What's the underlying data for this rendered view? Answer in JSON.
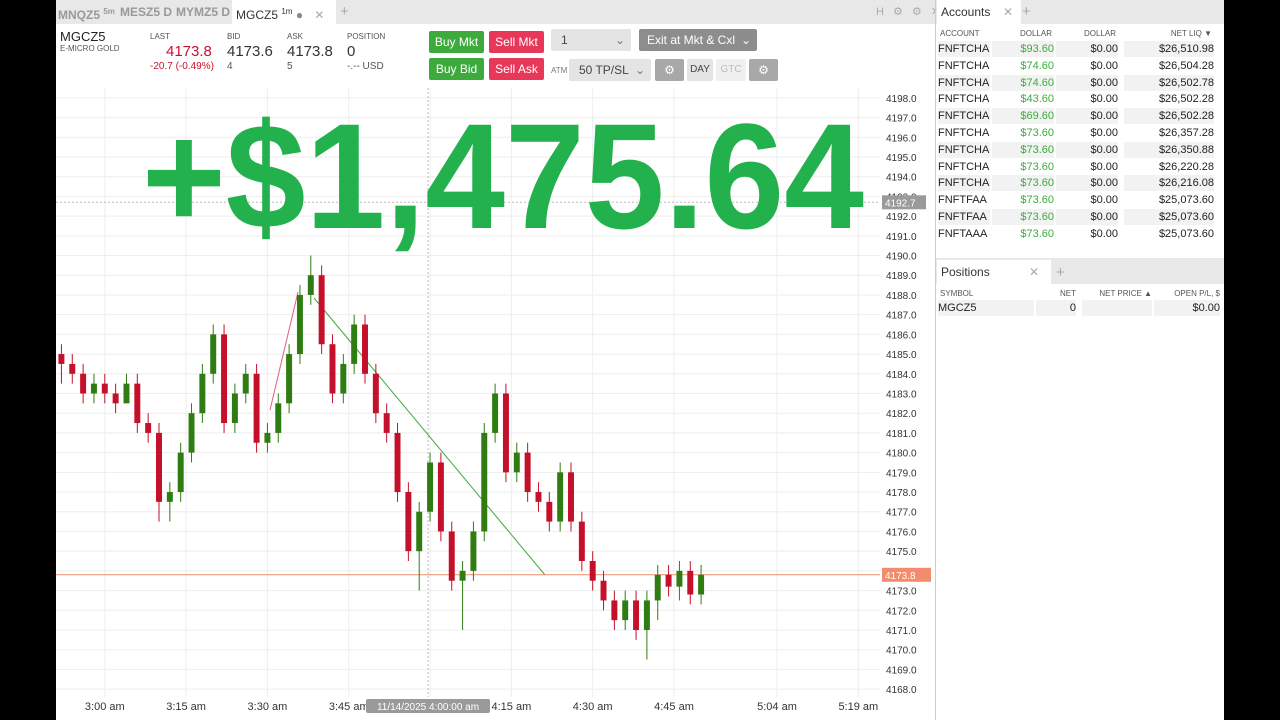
{
  "tabs": [
    {
      "symbol": "MNQZ5",
      "period": "5m"
    },
    {
      "symbol": "MESZ5",
      "period": "D"
    },
    {
      "symbol": "MYMZ5",
      "period": "D"
    },
    {
      "symbol": "MGCZ5",
      "period": "1m"
    }
  ],
  "quote": {
    "symbol": "MGCZ5",
    "description": "E-MICRO GOLD",
    "last_label": "LAST",
    "last": "4173.8",
    "change": "-20.7 (-0.49%)",
    "bid_label": "BID",
    "bid": "4173.6",
    "bid_size": "4",
    "ask_label": "ASK",
    "ask": "4173.8",
    "ask_size": "5",
    "position_label": "POSITION",
    "position": "0",
    "position_value": "-.-- USD"
  },
  "order_panel": {
    "buy_mkt": "Buy Mkt",
    "sell_mkt": "Sell Mkt",
    "buy_bid": "Buy Bid",
    "sell_ask": "Sell Ask",
    "quantity": "1",
    "exit": "Exit at Mkt & Cxl",
    "atm_label": "ATM",
    "atm": "50 TP/SL",
    "tif_day": "DAY",
    "tif_gtc": "GTC"
  },
  "overlay_text": "+$1,475.64",
  "chart_data": {
    "type": "candlestick",
    "up_color": "#2f7d12",
    "down_color": "#c4102a",
    "grid": true,
    "x": [
      "2:52 am",
      "2:54 am",
      "2:56 am",
      "2:58 am",
      "3:00 am",
      "3:02 am",
      "3:04 am",
      "3:06 am",
      "3:08 am",
      "3:10 am",
      "3:12 am",
      "3:14 am",
      "3:16 am",
      "3:18 am",
      "3:20 am",
      "3:22 am",
      "3:24 am",
      "3:26 am",
      "3:28 am",
      "3:30 am",
      "3:32 am",
      "3:34 am",
      "3:36 am",
      "3:38 am",
      "3:40 am",
      "3:42 am",
      "3:44 am",
      "3:46 am",
      "3:48 am",
      "3:50 am",
      "3:52 am",
      "3:54 am",
      "3:56 am",
      "3:58 am",
      "4:00 am",
      "4:02 am",
      "4:04 am",
      "4:06 am",
      "4:08 am",
      "4:10 am",
      "4:12 am",
      "4:14 am",
      "4:16 am",
      "4:18 am",
      "4:20 am",
      "4:22 am",
      "4:24 am",
      "4:26 am",
      "4:28 am",
      "4:30 am",
      "4:32 am",
      "4:34 am",
      "4:36 am",
      "4:38 am",
      "4:40 am",
      "4:42 am",
      "4:44 am",
      "4:46 am",
      "4:48 am",
      "4:50 am"
    ],
    "open": [
      4185,
      4184.5,
      4184,
      4183,
      4183.5,
      4183,
      4182.5,
      4183.5,
      4181.5,
      4181,
      4177.5,
      4178,
      4180,
      4182,
      4184,
      4186,
      4181.5,
      4183,
      4184,
      4180.5,
      4181,
      4182.5,
      4185,
      4188,
      4189,
      4185.5,
      4183,
      4184.5,
      4186.5,
      4184,
      4182,
      4181,
      4178,
      4175,
      4177,
      4179.5,
      4176,
      4173.5,
      4174,
      4176,
      4181,
      4183,
      4179,
      4180,
      4178,
      4177.5,
      4176.5,
      4179,
      4176.5,
      4174.5,
      4173.5,
      4172.5,
      4171.5,
      4172.5,
      4171,
      4172.5,
      4173.8,
      4173.2,
      4174,
      4172.8
    ],
    "high": [
      4185.5,
      4185,
      4184.5,
      4184,
      4184,
      4183.5,
      4184,
      4184,
      4182,
      4181.5,
      4178.5,
      4180.5,
      4182.5,
      4184.5,
      4186.5,
      4186.5,
      4183.5,
      4184.5,
      4184.5,
      4181.5,
      4183,
      4185.5,
      4188.5,
      4190,
      4189.5,
      4186,
      4185,
      4187,
      4187,
      4184.5,
      4182.5,
      4181.5,
      4178.5,
      4177.5,
      4180,
      4180,
      4176.5,
      4174.5,
      4176.5,
      4181.5,
      4183.5,
      4183.5,
      4180.5,
      4180.5,
      4178.5,
      4178,
      4179.5,
      4179.5,
      4177,
      4175,
      4174,
      4173,
      4173,
      4173,
      4173,
      4174.3,
      4174.3,
      4174.5,
      4174.5,
      4174.3
    ],
    "low": [
      4183.5,
      4183.5,
      4182.5,
      4182.5,
      4182.5,
      4182,
      4182.5,
      4181,
      4180.5,
      4176.5,
      4176.5,
      4177.5,
      4179.5,
      4181.5,
      4183.5,
      4181,
      4181,
      4182.5,
      4180,
      4180,
      4180.5,
      4182,
      4184.5,
      4187.5,
      4185,
      4182.5,
      4182.5,
      4184,
      4183.5,
      4181.5,
      4180.5,
      4177.5,
      4174.5,
      4173,
      4176.5,
      4175.5,
      4173,
      4171,
      4173.5,
      4175.5,
      4180.5,
      4178.5,
      4178.5,
      4177.5,
      4177,
      4176,
      4176,
      4176,
      4174,
      4173,
      4172,
      4171,
      4171,
      4170.5,
      4169.5,
      4171.5,
      4172.7,
      4172.5,
      4172.3,
      4172.3
    ],
    "close": [
      4184.5,
      4184,
      4183,
      4183.5,
      4183,
      4182.5,
      4183.5,
      4181.5,
      4181,
      4177.5,
      4178,
      4180,
      4182,
      4184,
      4186,
      4181.5,
      4183,
      4184,
      4180.5,
      4181,
      4182.5,
      4185,
      4188,
      4189,
      4185.5,
      4183,
      4184.5,
      4186.5,
      4184,
      4182,
      4181,
      4178,
      4175,
      4177,
      4179.5,
      4176,
      4173.5,
      4174,
      4176,
      4181,
      4183,
      4179,
      4180,
      4178,
      4177.5,
      4176.5,
      4179,
      4176.5,
      4174.5,
      4173.5,
      4172.5,
      4171.5,
      4172.5,
      4171,
      4172.5,
      4173.8,
      4173.2,
      4174,
      4172.8,
      4173.8
    ],
    "xlim": [
      "2:51 am",
      "5:23 am"
    ],
    "xticks": [
      "3:00 am",
      "3:15 am",
      "3:30 am",
      "3:45 am",
      "4:00 am",
      "4:15 am",
      "4:30 am",
      "4:45 am",
      "5:04 am",
      "5:19 am"
    ],
    "ylim": [
      4167.6,
      4198.5
    ],
    "yticks": [
      {
        "value": 4168,
        "label": "4168.0"
      },
      {
        "value": 4169,
        "label": "4169.0"
      },
      {
        "value": 4170,
        "label": "4170.0"
      },
      {
        "value": 4171,
        "label": "4171.0"
      },
      {
        "value": 4172,
        "label": "4172.0"
      },
      {
        "value": 4173,
        "label": "4173.0"
      },
      {
        "value": 4174,
        "label": "4174.0"
      },
      {
        "value": 4175,
        "label": "4175.0"
      },
      {
        "value": 4176,
        "label": "4176.0"
      },
      {
        "value": 4177,
        "label": "4177.0"
      },
      {
        "value": 4178,
        "label": "4178.0"
      },
      {
        "value": 4179,
        "label": "4179.0"
      },
      {
        "value": 4180,
        "label": "4180.0"
      },
      {
        "value": 4181,
        "label": "4181.0"
      },
      {
        "value": 4182,
        "label": "4182.0"
      },
      {
        "value": 4183,
        "label": "4183.0"
      },
      {
        "value": 4184,
        "label": "4184.0"
      },
      {
        "value": 4185,
        "label": "4185.0"
      },
      {
        "value": 4186,
        "label": "4186.0"
      },
      {
        "value": 4187,
        "label": "4187.0"
      },
      {
        "value": 4188,
        "label": "4188.0"
      },
      {
        "value": 4189,
        "label": "4189.0"
      },
      {
        "value": 4190,
        "label": "4190.0"
      },
      {
        "value": 4191,
        "label": "4191.0"
      },
      {
        "value": 4192,
        "label": "4192.0"
      },
      {
        "value": 4193,
        "label": "4193.0"
      },
      {
        "value": 4194,
        "label": "4194.0"
      },
      {
        "value": 4195,
        "label": "4195.0"
      },
      {
        "value": 4196,
        "label": "4196.0"
      },
      {
        "value": 4197,
        "label": "4197.0"
      },
      {
        "value": 4198,
        "label": "4198.0"
      }
    ],
    "last_price": 4173.8,
    "last_price_color": "#f28c6c",
    "crosshair_price": 4192.7,
    "crosshair_label": "11/14/2025 4:00:00 am"
  },
  "accounts": {
    "title": "Accounts",
    "columns": [
      "ACCOUNT",
      "DOLLAR",
      "DOLLAR",
      "NET LIQ ▼"
    ],
    "rows": [
      [
        "FNFTCHA",
        "$93.60",
        "$0.00",
        "$26,510.98"
      ],
      [
        "FNFTCHA",
        "$74.60",
        "$0.00",
        "$26,504.28"
      ],
      [
        "FNFTCHA",
        "$74.60",
        "$0.00",
        "$26,502.78"
      ],
      [
        "FNFTCHA",
        "$43.60",
        "$0.00",
        "$26,502.28"
      ],
      [
        "FNFTCHA",
        "$69.60",
        "$0.00",
        "$26,502.28"
      ],
      [
        "FNFTCHA",
        "$73.60",
        "$0.00",
        "$26,357.28"
      ],
      [
        "FNFTCHA",
        "$73.60",
        "$0.00",
        "$26,350.88"
      ],
      [
        "FNFTCHA",
        "$73.60",
        "$0.00",
        "$26,220.28"
      ],
      [
        "FNFTCHA",
        "$73.60",
        "$0.00",
        "$26,216.08"
      ],
      [
        "FNFTFAA",
        "$73.60",
        "$0.00",
        "$25,073.60"
      ],
      [
        "FNFTFAA",
        "$73.60",
        "$0.00",
        "$25,073.60"
      ],
      [
        "FNFTAAA",
        "$73.60",
        "$0.00",
        "$25,073.60"
      ]
    ]
  },
  "positions": {
    "title": "Positions",
    "columns": [
      "SYMBOL",
      "NET",
      "NET PRICE ▲",
      "OPEN P/L, $"
    ],
    "rows": [
      [
        "MGCZ5",
        "0",
        null,
        "$0.00"
      ]
    ]
  }
}
